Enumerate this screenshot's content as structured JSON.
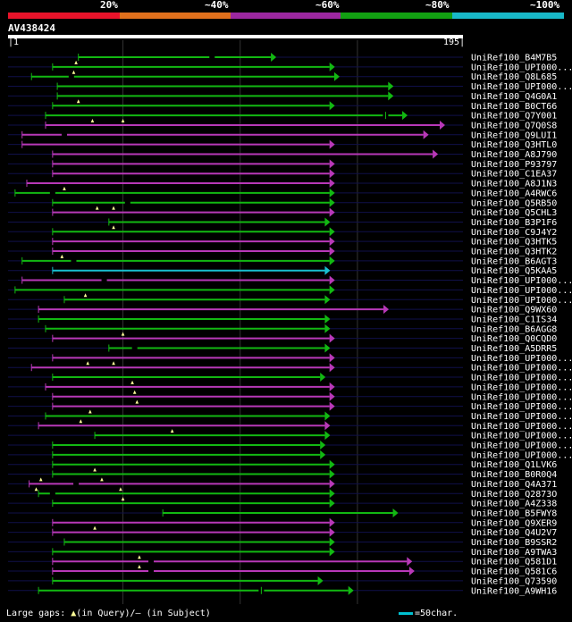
{
  "title": "AV438424",
  "legend": [
    {
      "label": "20%",
      "color": "#e8132a"
    },
    {
      "label": "~40%",
      "color": "#e0701c"
    },
    {
      "label": "~60%",
      "color": "#9c27a0"
    },
    {
      "label": "~80%",
      "color": "#12a012"
    },
    {
      "label": "~100%",
      "color": "#18b8c8"
    }
  ],
  "scale": {
    "start_label": "1",
    "end_label": "195"
  },
  "footer": {
    "gaps_prefix": "Large gaps:",
    "gaps_query": "(in Query)/",
    "gaps_subject": "— (in Subject)",
    "scale_key": "=50char."
  },
  "chart_data": {
    "type": "alignment-map",
    "query_length": 195,
    "identity_bins": [
      "20%",
      "~40%",
      "~60%",
      "~80%",
      "~100%"
    ],
    "hits": [
      {
        "name": "UniRef100_B4M7B5",
        "start": 31,
        "end": 115,
        "color": "green",
        "qgaps": [],
        "sgaps": [
          88
        ]
      },
      {
        "name": "UniRef100_UPI000...",
        "start": 20,
        "end": 140,
        "color": "green",
        "qgaps": [
          30
        ],
        "sgaps": []
      },
      {
        "name": "UniRef100_Q8L685",
        "start": 11,
        "end": 142,
        "color": "green",
        "qgaps": [
          29
        ],
        "sgaps": [
          28
        ]
      },
      {
        "name": "UniRef100_UPI000...",
        "start": 22,
        "end": 165,
        "color": "green",
        "qgaps": [],
        "sgaps": []
      },
      {
        "name": "UniRef100_Q4G0A1",
        "start": 22,
        "end": 165,
        "color": "green",
        "qgaps": [],
        "sgaps": []
      },
      {
        "name": "UniRef100_B0CT66",
        "start": 20,
        "end": 140,
        "color": "green",
        "qgaps": [
          31
        ],
        "sgaps": []
      },
      {
        "name": "UniRef100_Q7Y001",
        "start": 17,
        "end": 171,
        "color": "green",
        "qgaps": [],
        "sgaps": [
          162
        ]
      },
      {
        "name": "UniRef100_Q7Q0S8",
        "start": 17,
        "end": 187,
        "color": "magenta",
        "qgaps": [
          37,
          50
        ],
        "sgaps": []
      },
      {
        "name": "UniRef100_Q9LUI1",
        "start": 7,
        "end": 180,
        "color": "magenta",
        "qgaps": [],
        "sgaps": [
          25
        ]
      },
      {
        "name": "UniRef100_Q3HTL0",
        "start": 7,
        "end": 140,
        "color": "magenta",
        "qgaps": [],
        "sgaps": []
      },
      {
        "name": "UniRef100_A8J790",
        "start": 20,
        "end": 184,
        "color": "magenta",
        "qgaps": [],
        "sgaps": []
      },
      {
        "name": "UniRef100_P93797",
        "start": 20,
        "end": 140,
        "color": "magenta",
        "qgaps": [],
        "sgaps": []
      },
      {
        "name": "UniRef100_C1EA37",
        "start": 20,
        "end": 140,
        "color": "magenta",
        "qgaps": [],
        "sgaps": []
      },
      {
        "name": "UniRef100_A8J1N3",
        "start": 9,
        "end": 140,
        "color": "magenta",
        "qgaps": [],
        "sgaps": []
      },
      {
        "name": "UniRef100_A4RWC6",
        "start": 4,
        "end": 140,
        "color": "green",
        "qgaps": [
          25
        ],
        "sgaps": [
          20
        ]
      },
      {
        "name": "UniRef100_Q5RB50",
        "start": 20,
        "end": 140,
        "color": "green",
        "qgaps": [],
        "sgaps": [
          52
        ]
      },
      {
        "name": "UniRef100_Q5CHL3",
        "start": 20,
        "end": 140,
        "color": "magenta",
        "qgaps": [
          39,
          46
        ],
        "sgaps": []
      },
      {
        "name": "UniRef100_B3P1F6",
        "start": 44,
        "end": 138,
        "color": "green",
        "qgaps": [],
        "sgaps": []
      },
      {
        "name": "UniRef100_C9J4Y2",
        "start": 20,
        "end": 140,
        "color": "green",
        "qgaps": [
          46
        ],
        "sgaps": []
      },
      {
        "name": "UniRef100_Q3HTK5",
        "start": 20,
        "end": 140,
        "color": "magenta",
        "qgaps": [],
        "sgaps": []
      },
      {
        "name": "UniRef100_Q3HTK2",
        "start": 20,
        "end": 140,
        "color": "magenta",
        "qgaps": [],
        "sgaps": []
      },
      {
        "name": "UniRef100_B6AGT3",
        "start": 7,
        "end": 140,
        "color": "green",
        "qgaps": [
          24
        ],
        "sgaps": [
          29
        ]
      },
      {
        "name": "UniRef100_Q5KAA5",
        "start": 20,
        "end": 138,
        "color": "cyan",
        "qgaps": [],
        "sgaps": []
      },
      {
        "name": "UniRef100_UPI000...",
        "start": 7,
        "end": 140,
        "color": "magenta",
        "qgaps": [],
        "sgaps": [
          42
        ]
      },
      {
        "name": "UniRef100_UPI000...",
        "start": 4,
        "end": 140,
        "color": "green",
        "qgaps": [],
        "sgaps": []
      },
      {
        "name": "UniRef100_UPI000...",
        "start": 25,
        "end": 138,
        "color": "green",
        "qgaps": [
          34
        ],
        "sgaps": []
      },
      {
        "name": "UniRef100_Q9WX60",
        "start": 14,
        "end": 163,
        "color": "magenta",
        "qgaps": [],
        "sgaps": []
      },
      {
        "name": "UniRef100_C1IS34",
        "start": 14,
        "end": 138,
        "color": "green",
        "qgaps": [],
        "sgaps": []
      },
      {
        "name": "UniRef100_B6AGG8",
        "start": 17,
        "end": 138,
        "color": "green",
        "qgaps": [],
        "sgaps": []
      },
      {
        "name": "UniRef100_Q0CQD0",
        "start": 20,
        "end": 140,
        "color": "magenta",
        "qgaps": [
          50
        ],
        "sgaps": []
      },
      {
        "name": "UniRef100_A5DRR5",
        "start": 44,
        "end": 138,
        "color": "green",
        "qgaps": [],
        "sgaps": [
          55
        ]
      },
      {
        "name": "UniRef100_UPI000...",
        "start": 20,
        "end": 140,
        "color": "magenta",
        "qgaps": [],
        "sgaps": []
      },
      {
        "name": "UniRef100_UPI000...",
        "start": 11,
        "end": 140,
        "color": "magenta",
        "qgaps": [
          35,
          46
        ],
        "sgaps": []
      },
      {
        "name": "UniRef100_UPI000...",
        "start": 20,
        "end": 136,
        "color": "green",
        "qgaps": [],
        "sgaps": []
      },
      {
        "name": "UniRef100_UPI000...",
        "start": 17,
        "end": 140,
        "color": "magenta",
        "qgaps": [
          54
        ],
        "sgaps": []
      },
      {
        "name": "UniRef100_UPI000...",
        "start": 20,
        "end": 140,
        "color": "magenta",
        "qgaps": [
          55
        ],
        "sgaps": []
      },
      {
        "name": "UniRef100_UPI000...",
        "start": 20,
        "end": 140,
        "color": "magenta",
        "qgaps": [
          56
        ],
        "sgaps": []
      },
      {
        "name": "UniRef100_UPI000...",
        "start": 17,
        "end": 138,
        "color": "green",
        "qgaps": [
          36
        ],
        "sgaps": []
      },
      {
        "name": "UniRef100_UPI000...",
        "start": 14,
        "end": 138,
        "color": "magenta",
        "qgaps": [
          32
        ],
        "sgaps": []
      },
      {
        "name": "UniRef100_UPI000...",
        "start": 38,
        "end": 138,
        "color": "green",
        "qgaps": [
          71
        ],
        "sgaps": []
      },
      {
        "name": "UniRef100_UPI000...",
        "start": 20,
        "end": 136,
        "color": "green",
        "qgaps": [],
        "sgaps": []
      },
      {
        "name": "UniRef100_UPI000...",
        "start": 20,
        "end": 136,
        "color": "green",
        "qgaps": [],
        "sgaps": []
      },
      {
        "name": "UniRef100_Q1LVK6",
        "start": 20,
        "end": 140,
        "color": "green",
        "qgaps": [],
        "sgaps": []
      },
      {
        "name": "UniRef100_B0R0Q4",
        "start": 20,
        "end": 140,
        "color": "green",
        "qgaps": [
          38
        ],
        "sgaps": []
      },
      {
        "name": "UniRef100_Q4A371",
        "start": 10,
        "end": 140,
        "color": "magenta",
        "qgaps": [
          15,
          41
        ],
        "sgaps": [
          30
        ]
      },
      {
        "name": "UniRef100_Q2873O",
        "start": 14,
        "end": 140,
        "color": "green",
        "qgaps": [
          13,
          49
        ],
        "sgaps": [
          20
        ]
      },
      {
        "name": "UniRef100_A4Z338",
        "start": 20,
        "end": 140,
        "color": "green",
        "qgaps": [
          50
        ],
        "sgaps": []
      },
      {
        "name": "UniRef100_B5FWY8",
        "start": 67,
        "end": 167,
        "color": "green",
        "qgaps": [],
        "sgaps": []
      },
      {
        "name": "UniRef100_Q9XER9",
        "start": 20,
        "end": 140,
        "color": "magenta",
        "qgaps": [],
        "sgaps": []
      },
      {
        "name": "UniRef100_Q4U2V7",
        "start": 20,
        "end": 140,
        "color": "magenta",
        "qgaps": [
          38
        ],
        "sgaps": []
      },
      {
        "name": "UniRef100_B9SSR2",
        "start": 25,
        "end": 140,
        "color": "green",
        "qgaps": [],
        "sgaps": []
      },
      {
        "name": "UniRef100_A9TWA3",
        "start": 20,
        "end": 140,
        "color": "green",
        "qgaps": [],
        "sgaps": []
      },
      {
        "name": "UniRef100_Q581D1",
        "start": 20,
        "end": 173,
        "color": "magenta",
        "qgaps": [
          57
        ],
        "sgaps": [
          62
        ]
      },
      {
        "name": "UniRef100_Q581C6",
        "start": 20,
        "end": 174,
        "color": "magenta",
        "qgaps": [
          57
        ],
        "sgaps": [
          62
        ]
      },
      {
        "name": "UniRef100_Q73590",
        "start": 20,
        "end": 135,
        "color": "green",
        "qgaps": [],
        "sgaps": []
      },
      {
        "name": "UniRef100_A9WH16",
        "start": 14,
        "end": 148,
        "color": "green",
        "qgaps": [],
        "sgaps": [
          109
        ]
      }
    ]
  }
}
